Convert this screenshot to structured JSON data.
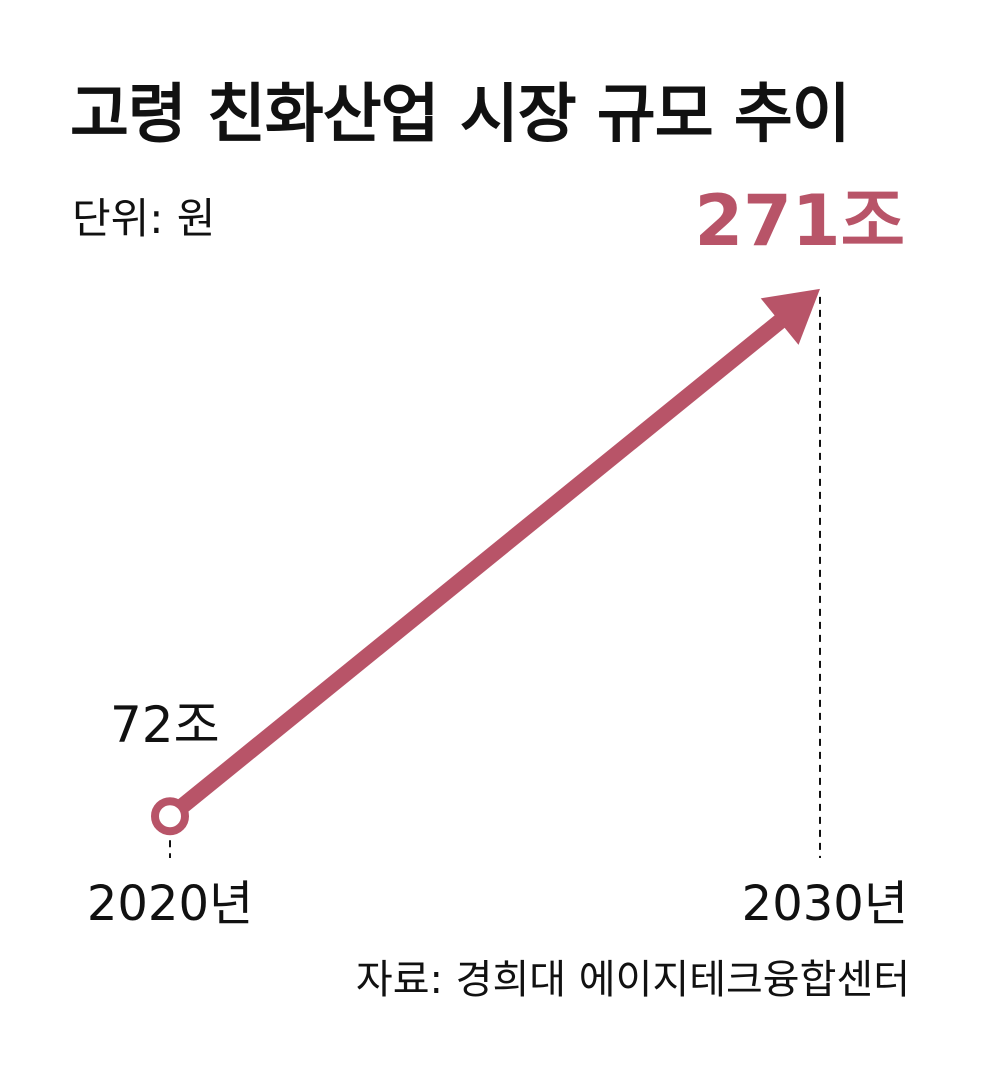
{
  "header": {
    "title": "고령 친화산업 시장 규모 추이",
    "unit": "단위: 원"
  },
  "chart_data": {
    "type": "line",
    "x": [
      "2020년",
      "2030년"
    ],
    "series": [
      {
        "values": [
          72,
          271
        ],
        "value_labels": [
          "72조",
          "271조"
        ]
      }
    ],
    "title": "고령 친화산업 시장 규모 추이",
    "xlabel": "",
    "ylabel": "",
    "ylim": [
      0,
      280
    ],
    "grid": false,
    "legend": "none"
  },
  "footer": {
    "source": "자료: 경희대 에이지테크융합센터"
  },
  "colors": {
    "accent": "#b85468",
    "text": "#111111",
    "background": "#ffffff"
  }
}
